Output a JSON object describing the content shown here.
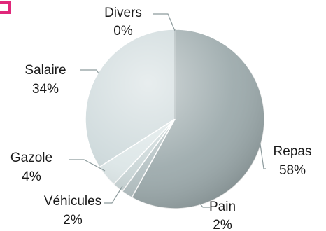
{
  "chart_data": {
    "type": "pie",
    "title": "",
    "categories": [
      "Repas",
      "Pain",
      "Véhicules",
      "Gazole",
      "Salaire",
      "Divers"
    ],
    "values": [
      58,
      2,
      2,
      4,
      34,
      0
    ],
    "value_labels": [
      "58%",
      "2%",
      "2%",
      "4%",
      "34%",
      "0%"
    ],
    "start": "12 o'clock",
    "direction": "clockwise",
    "style": "3d-shaded",
    "legend": "none",
    "colors": {
      "Repas": "#9aa8aa",
      "Pain": "#b3c0c2",
      "Véhicules": "#c9d5d6",
      "Gazole": "#dbe5e6",
      "Salaire": "#ccd8da",
      "Divers": "#e7eeef"
    },
    "accent_corner_color": "#e0287a",
    "leader_line_color": "#8c9a9c"
  }
}
